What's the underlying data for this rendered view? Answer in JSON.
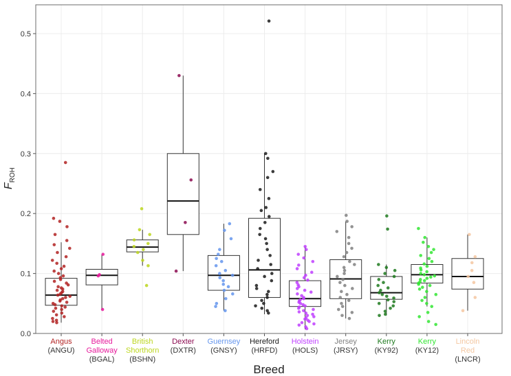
{
  "chart_data": {
    "type": "boxplot",
    "title": "",
    "xlabel": "Breed",
    "ylabel": "F",
    "ylabel_sub": "ROH",
    "ylim": [
      0,
      0.53
    ],
    "yticks": [
      0.0,
      0.1,
      0.2,
      0.3,
      0.4,
      0.5
    ],
    "ytick_labels": [
      "0.0",
      "0.1",
      "0.2",
      "0.3",
      "0.4",
      "0.5"
    ],
    "grid": true,
    "categories": [
      {
        "name_lines": [
          "Angus"
        ],
        "code": "(ANGU)",
        "color": "#b22222",
        "box": {
          "q1": 0.047,
          "median": 0.064,
          "q3": 0.092,
          "whisker_low": 0.018,
          "whisker_high": 0.152
        },
        "points": [
          0.285,
          0.192,
          0.187,
          0.178,
          0.165,
          0.155,
          0.148,
          0.142,
          0.135,
          0.128,
          0.122,
          0.117,
          0.112,
          0.108,
          0.104,
          0.1,
          0.096,
          0.093,
          0.09,
          0.087,
          0.084,
          0.081,
          0.078,
          0.076,
          0.074,
          0.072,
          0.07,
          0.068,
          0.066,
          0.064,
          0.062,
          0.06,
          0.058,
          0.056,
          0.054,
          0.052,
          0.05,
          0.048,
          0.046,
          0.044,
          0.042,
          0.04,
          0.037,
          0.034,
          0.031,
          0.028,
          0.025,
          0.022,
          0.02,
          0.018
        ]
      },
      {
        "name_lines": [
          "Belted",
          "Galloway"
        ],
        "code": "(BGAL)",
        "color": "#e6199b",
        "box": {
          "q1": 0.081,
          "median": 0.097,
          "q3": 0.107,
          "whisker_low": 0.04,
          "whisker_high": 0.132
        },
        "points": [
          0.132,
          0.098,
          0.096,
          0.04
        ]
      },
      {
        "name_lines": [
          "British",
          "Shorthorn"
        ],
        "code": "(BSHN)",
        "color": "#bcd61e",
        "box": {
          "q1": 0.136,
          "median": 0.144,
          "q3": 0.156,
          "whisker_low": 0.113,
          "whisker_high": 0.173
        },
        "points": [
          0.208,
          0.173,
          0.165,
          0.156,
          0.15,
          0.145,
          0.14,
          0.135,
          0.122,
          0.113,
          0.08
        ]
      },
      {
        "name_lines": [
          "Dexter"
        ],
        "code": "(DXTR)",
        "color": "#8b0a50",
        "box": {
          "q1": 0.165,
          "median": 0.221,
          "q3": 0.3,
          "whisker_low": 0.104,
          "whisker_high": 0.43
        },
        "points": [
          0.43,
          0.256,
          0.185,
          0.104
        ]
      },
      {
        "name_lines": [
          "Guernsey"
        ],
        "code": "(GNSY)",
        "color": "#6495ed",
        "box": {
          "q1": 0.072,
          "median": 0.097,
          "q3": 0.13,
          "whisker_low": 0.038,
          "whisker_high": 0.183
        },
        "points": [
          0.183,
          0.172,
          0.158,
          0.14,
          0.132,
          0.125,
          0.12,
          0.113,
          0.105,
          0.1,
          0.097,
          0.093,
          0.088,
          0.082,
          0.078,
          0.072,
          0.066,
          0.058,
          0.05,
          0.045,
          0.038
        ]
      },
      {
        "name_lines": [
          "Hereford"
        ],
        "code": "(HRFD)",
        "color": "#1a1a1a",
        "box": {
          "q1": 0.06,
          "median": 0.106,
          "q3": 0.192,
          "whisker_low": 0.032,
          "whisker_high": 0.3
        },
        "points": [
          0.521,
          0.3,
          0.292,
          0.27,
          0.26,
          0.24,
          0.225,
          0.21,
          0.205,
          0.195,
          0.185,
          0.175,
          0.165,
          0.158,
          0.15,
          0.14,
          0.13,
          0.122,
          0.115,
          0.108,
          0.1,
          0.095,
          0.088,
          0.08,
          0.075,
          0.07,
          0.065,
          0.06,
          0.055,
          0.05,
          0.046,
          0.042,
          0.038,
          0.034
        ]
      },
      {
        "name_lines": [
          "Holstein"
        ],
        "code": "(HOLS)",
        "color": "#bf3fff",
        "box": {
          "q1": 0.045,
          "median": 0.058,
          "q3": 0.088,
          "whisker_low": 0.007,
          "whisker_high": 0.145
        },
        "points": [
          0.145,
          0.14,
          0.132,
          0.126,
          0.12,
          0.114,
          0.108,
          0.102,
          0.097,
          0.093,
          0.089,
          0.085,
          0.081,
          0.078,
          0.075,
          0.072,
          0.069,
          0.066,
          0.063,
          0.06,
          0.058,
          0.056,
          0.054,
          0.052,
          0.05,
          0.048,
          0.046,
          0.044,
          0.042,
          0.04,
          0.038,
          0.036,
          0.034,
          0.032,
          0.03,
          0.028,
          0.026,
          0.024,
          0.022,
          0.02,
          0.018,
          0.016,
          0.014,
          0.011,
          0.008
        ]
      },
      {
        "name_lines": [
          "Jersey"
        ],
        "code": "(JRSY)",
        "color": "#808080",
        "box": {
          "q1": 0.058,
          "median": 0.091,
          "q3": 0.123,
          "whisker_low": 0.025,
          "whisker_high": 0.187
        },
        "points": [
          0.197,
          0.187,
          0.178,
          0.17,
          0.16,
          0.15,
          0.142,
          0.135,
          0.128,
          0.12,
          0.115,
          0.11,
          0.105,
          0.1,
          0.095,
          0.09,
          0.085,
          0.08,
          0.075,
          0.07,
          0.065,
          0.06,
          0.055,
          0.05,
          0.045,
          0.04,
          0.035,
          0.03,
          0.025
        ]
      },
      {
        "name_lines": [
          "Kerry"
        ],
        "code": "(KY92)",
        "color": "#1e7a1e",
        "box": {
          "q1": 0.057,
          "median": 0.068,
          "q3": 0.095,
          "whisker_low": 0.03,
          "whisker_high": 0.115
        },
        "points": [
          0.196,
          0.174,
          0.115,
          0.11,
          0.105,
          0.1,
          0.095,
          0.09,
          0.085,
          0.08,
          0.076,
          0.072,
          0.068,
          0.065,
          0.062,
          0.059,
          0.056,
          0.053,
          0.05,
          0.046,
          0.042,
          0.037,
          0.032,
          0.03
        ]
      },
      {
        "name_lines": [
          "Kerry"
        ],
        "code": "(KY12)",
        "color": "#33e633",
        "box": {
          "q1": 0.084,
          "median": 0.098,
          "q3": 0.115,
          "whisker_low": 0.045,
          "whisker_high": 0.16
        },
        "points": [
          0.175,
          0.16,
          0.152,
          0.145,
          0.14,
          0.135,
          0.13,
          0.125,
          0.12,
          0.116,
          0.112,
          0.109,
          0.106,
          0.103,
          0.1,
          0.098,
          0.096,
          0.094,
          0.092,
          0.09,
          0.088,
          0.086,
          0.084,
          0.082,
          0.08,
          0.077,
          0.074,
          0.07,
          0.065,
          0.06,
          0.055,
          0.05,
          0.045,
          0.035,
          0.028,
          0.02,
          0.015
        ]
      },
      {
        "name_lines": [
          "Lincoln",
          "Red"
        ],
        "code": "(LNCR)",
        "color": "#f4c7a1",
        "box": {
          "q1": 0.074,
          "median": 0.095,
          "q3": 0.125,
          "whisker_low": 0.038,
          "whisker_high": 0.165
        },
        "points": [
          0.165,
          0.128,
          0.118,
          0.105,
          0.095,
          0.085,
          0.06,
          0.038
        ]
      }
    ]
  }
}
